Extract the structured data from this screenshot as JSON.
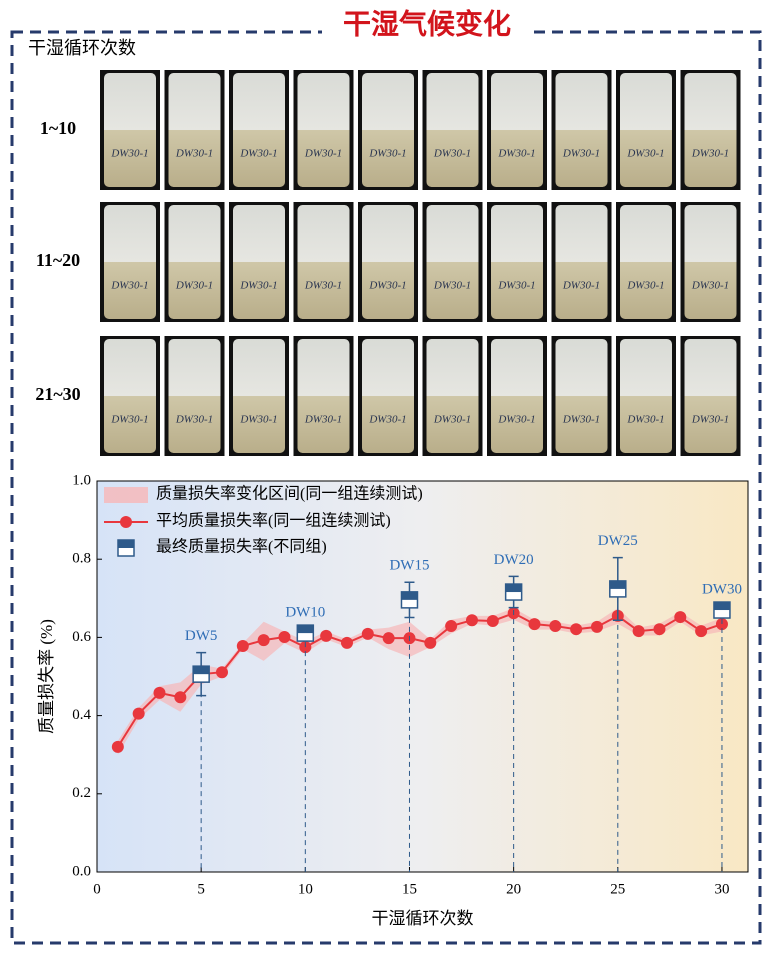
{
  "title": "干湿气候变化",
  "photos": {
    "panel_label": "干湿循环次数",
    "rows": [
      "1~10",
      "11~20",
      "21~30"
    ],
    "specimen_label": "DW30-1"
  },
  "chart_data": {
    "type": "line",
    "x_label": "干湿循环次数",
    "y_label": "质量损失率 (%)",
    "xlim": [
      0,
      31.25
    ],
    "xticks": [
      0,
      5,
      10,
      15,
      20,
      25,
      30
    ],
    "ylim": [
      0,
      1
    ],
    "yticks": [
      {
        "value": 0,
        "label": "0.0"
      },
      0.2,
      0.4,
      0.6,
      0.8,
      {
        "value": 1,
        "label": "1.0"
      }
    ],
    "x": [
      1,
      2,
      3,
      4,
      5,
      6,
      7,
      8,
      9,
      10,
      11,
      12,
      13,
      14,
      15,
      16,
      17,
      18,
      19,
      20,
      21,
      22,
      23,
      24,
      25,
      26,
      27,
      28,
      29,
      30
    ],
    "series": [
      {
        "name": "质量损失率变化区间(同一组连续测试)",
        "style": "band",
        "color": "#f7b6b8",
        "lower": [
          0.3,
          0.39,
          0.44,
          0.41,
          0.48,
          0.5,
          0.57,
          0.54,
          0.585,
          0.56,
          0.595,
          0.575,
          0.6,
          0.57,
          0.55,
          0.575,
          0.61,
          0.635,
          0.63,
          0.645,
          0.62,
          0.62,
          0.61,
          0.615,
          0.635,
          0.605,
          0.605,
          0.64,
          0.605,
          0.615
        ],
        "upper": [
          0.335,
          0.42,
          0.475,
          0.485,
          0.53,
          0.52,
          0.585,
          0.64,
          0.615,
          0.59,
          0.615,
          0.595,
          0.62,
          0.625,
          0.64,
          0.595,
          0.645,
          0.655,
          0.655,
          0.675,
          0.645,
          0.64,
          0.63,
          0.64,
          0.675,
          0.625,
          0.635,
          0.665,
          0.63,
          0.65
        ]
      },
      {
        "name": "平均质量损失率(同一组连续测试)",
        "style": "line",
        "color": "#e8373d",
        "values": [
          0.32,
          0.405,
          0.458,
          0.447,
          0.506,
          0.511,
          0.578,
          0.593,
          0.601,
          0.575,
          0.604,
          0.586,
          0.609,
          0.598,
          0.598,
          0.586,
          0.629,
          0.644,
          0.642,
          0.662,
          0.634,
          0.629,
          0.621,
          0.627,
          0.655,
          0.616,
          0.621,
          0.652,
          0.616,
          0.634
        ]
      },
      {
        "name": "最终质量损失率(不同组)",
        "style": "markers",
        "color": "#2e5a8a",
        "x": [
          5,
          10,
          15,
          20,
          25,
          30
        ],
        "values": [
          0.506,
          0.611,
          0.696,
          0.716,
          0.724,
          0.67
        ],
        "errors": [
          0.055,
          0.01,
          0.045,
          0.04,
          0.08,
          0.01
        ],
        "point_labels": [
          "DW5",
          "DW10",
          "DW15",
          "DW20",
          "DW25",
          "DW30"
        ]
      }
    ]
  }
}
